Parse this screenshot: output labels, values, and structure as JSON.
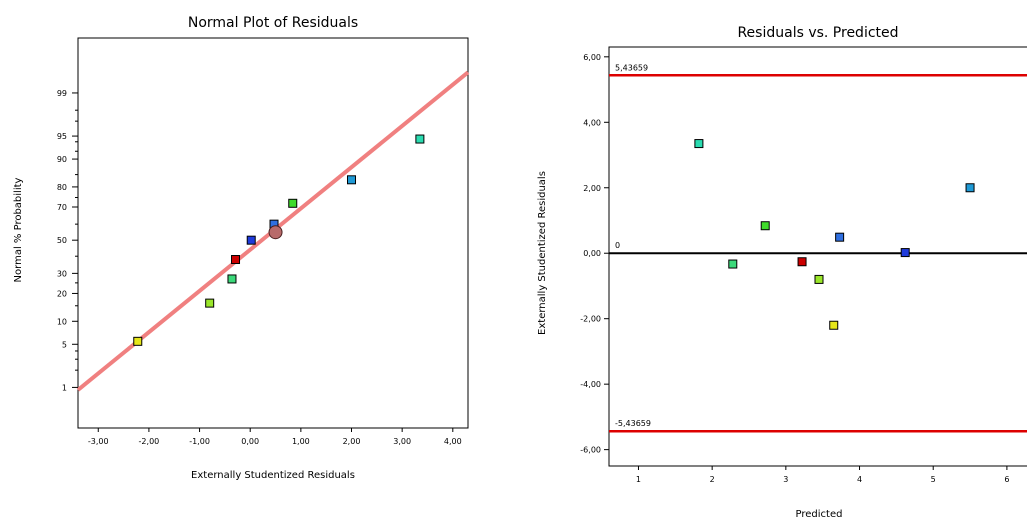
{
  "charts": [
    {
      "title": "Normal Plot of Residuals",
      "xlabel": "Externally Studentized Residuals",
      "ylabel": "Normal % Probability"
    },
    {
      "title": "Residuals vs. Predicted",
      "xlabel": "Predicted",
      "ylabel": "Externally Studentized Residuals",
      "upper_limit_label": "5,43659",
      "zero_label": "0",
      "lower_limit_label": "-5,43659"
    }
  ],
  "chart_data": [
    {
      "type": "scatter",
      "title": "Normal Plot of Residuals",
      "xlabel": "Externally Studentized Residuals",
      "ylabel": "Normal % Probability",
      "xlim": [
        -3.4,
        4.3
      ],
      "x_ticks": [
        -3,
        -2,
        -1,
        0,
        1,
        2,
        3,
        4
      ],
      "x_tick_labels": [
        "-3,00",
        "-2,00",
        "-1,00",
        "0,00",
        "1,00",
        "2,00",
        "3,00",
        "4,00"
      ],
      "y_scale": "normal-probability",
      "y_ticks": [
        1,
        5,
        10,
        20,
        30,
        50,
        70,
        80,
        90,
        95,
        99
      ],
      "y_tick_labels": [
        "1",
        "5",
        "10",
        "20",
        "30",
        "50",
        "70",
        "80",
        "90",
        "95",
        "99"
      ],
      "reference_line": {
        "x": [
          -3.4,
          4.3
        ],
        "y": [
          0.9,
          99.6
        ],
        "color": "#f08080"
      },
      "points": [
        {
          "x": -2.22,
          "y": 5.5,
          "color": "#e6e619"
        },
        {
          "x": -0.8,
          "y": 16,
          "color": "#9ae62a"
        },
        {
          "x": -0.36,
          "y": 27,
          "color": "#3bd97a"
        },
        {
          "x": -0.29,
          "y": 38,
          "color": "#cc0000"
        },
        {
          "x": 0.02,
          "y": 50,
          "color": "#1f3bdb"
        },
        {
          "x": 0.47,
          "y": 60,
          "color": "#2f6fe0"
        },
        {
          "x": 0.84,
          "y": 72,
          "color": "#3fdc2a"
        },
        {
          "x": 2.0,
          "y": 83,
          "color": "#1f9ad6"
        },
        {
          "x": 3.35,
          "y": 94.5,
          "color": "#2adbb0"
        }
      ],
      "highlight_point": {
        "x": 0.5,
        "y": 55,
        "color": "#b86a6a"
      }
    },
    {
      "type": "scatter",
      "title": "Residuals vs. Predicted",
      "xlabel": "Predicted",
      "ylabel": "Externally Studentized Residuals",
      "xlim": [
        0.6,
        6.3
      ],
      "x_ticks": [
        1,
        2,
        3,
        4,
        5,
        6
      ],
      "x_tick_labels": [
        "1",
        "2",
        "3",
        "4",
        "5",
        "6"
      ],
      "ylim": [
        -6.5,
        6.3
      ],
      "y_ticks": [
        -6,
        -4,
        -2,
        0,
        2,
        4,
        6
      ],
      "y_tick_labels": [
        "-6,00",
        "-4,00",
        "-2,00",
        "0,00",
        "2,00",
        "4,00",
        "6,00"
      ],
      "hlines": [
        {
          "y": 5.43659,
          "color": "#dd0000",
          "label": "5,43659"
        },
        {
          "y": 0,
          "color": "#000000",
          "label": "0"
        },
        {
          "y": -5.43659,
          "color": "#dd0000",
          "label": "-5,43659"
        }
      ],
      "points": [
        {
          "x": 1.82,
          "y": 3.35,
          "color": "#2adbb0"
        },
        {
          "x": 2.28,
          "y": -0.33,
          "color": "#3bd97a"
        },
        {
          "x": 2.72,
          "y": 0.84,
          "color": "#3fdc2a"
        },
        {
          "x": 3.22,
          "y": -0.26,
          "color": "#cc0000"
        },
        {
          "x": 3.45,
          "y": -0.8,
          "color": "#9ae62a"
        },
        {
          "x": 3.65,
          "y": -2.2,
          "color": "#e6e619"
        },
        {
          "x": 3.73,
          "y": 0.49,
          "color": "#2f6fe0"
        },
        {
          "x": 4.62,
          "y": 0.02,
          "color": "#1f3bdb"
        },
        {
          "x": 5.5,
          "y": 2.0,
          "color": "#1f9ad6"
        }
      ]
    }
  ]
}
